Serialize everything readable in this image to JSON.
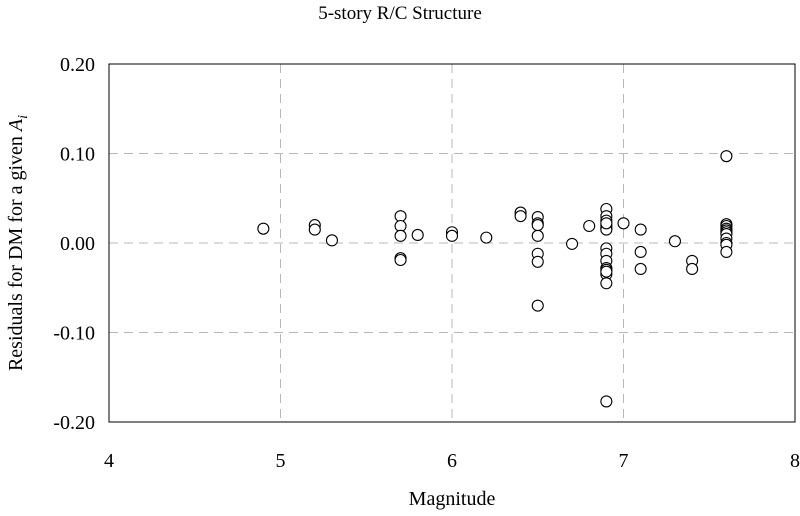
{
  "chart_data": {
    "type": "scatter",
    "title": "5-story R/C Structure",
    "xlabel": "Magnitude",
    "ylabel_text": "Residuals for DM for a given ",
    "ylabel_symbol": "A",
    "ylabel_subscript": "i",
    "xlim": [
      4,
      8
    ],
    "ylim": [
      -0.2,
      0.2
    ],
    "x_ticks": [
      4,
      5,
      6,
      7,
      8
    ],
    "x_tick_labels": [
      "4",
      "5",
      "6",
      "7",
      "8"
    ],
    "y_ticks": [
      -0.2,
      -0.1,
      0.0,
      0.1,
      0.2
    ],
    "y_tick_labels": [
      "-0.20",
      "-0.10",
      "0.00",
      "0.10",
      "0.20"
    ],
    "grid": true,
    "marker": "open-circle",
    "x": [
      4.9,
      5.2,
      5.2,
      5.3,
      5.7,
      5.7,
      5.7,
      5.7,
      5.7,
      5.8,
      6.0,
      6.0,
      6.2,
      6.4,
      6.4,
      6.5,
      6.5,
      6.5,
      6.5,
      6.5,
      6.5,
      6.5,
      6.7,
      6.8,
      6.9,
      6.9,
      6.9,
      6.9,
      6.9,
      6.9,
      6.9,
      6.9,
      6.9,
      6.9,
      6.9,
      6.9,
      6.9,
      6.9,
      6.9,
      6.9,
      7.0,
      7.1,
      7.1,
      7.1,
      7.3,
      7.4,
      7.4,
      7.6,
      7.6,
      7.6,
      7.6,
      7.6,
      7.6,
      7.6,
      7.6,
      7.6,
      7.6,
      7.6
    ],
    "y": [
      0.016,
      0.02,
      0.015,
      0.003,
      0.03,
      0.019,
      0.008,
      -0.017,
      -0.019,
      0.009,
      0.012,
      0.008,
      0.006,
      0.034,
      0.03,
      0.029,
      0.022,
      0.008,
      -0.012,
      -0.021,
      -0.07,
      0.02,
      -0.001,
      0.019,
      0.038,
      0.03,
      0.025,
      0.02,
      0.017,
      0.015,
      -0.006,
      -0.012,
      -0.02,
      -0.028,
      -0.03,
      -0.035,
      -0.045,
      -0.177,
      -0.032,
      0.022,
      0.022,
      0.015,
      -0.01,
      -0.029,
      0.002,
      -0.02,
      -0.029,
      0.097,
      0.021,
      0.019,
      0.016,
      0.014,
      0.012,
      0.01,
      0.005,
      0.0,
      -0.002,
      -0.01
    ]
  }
}
